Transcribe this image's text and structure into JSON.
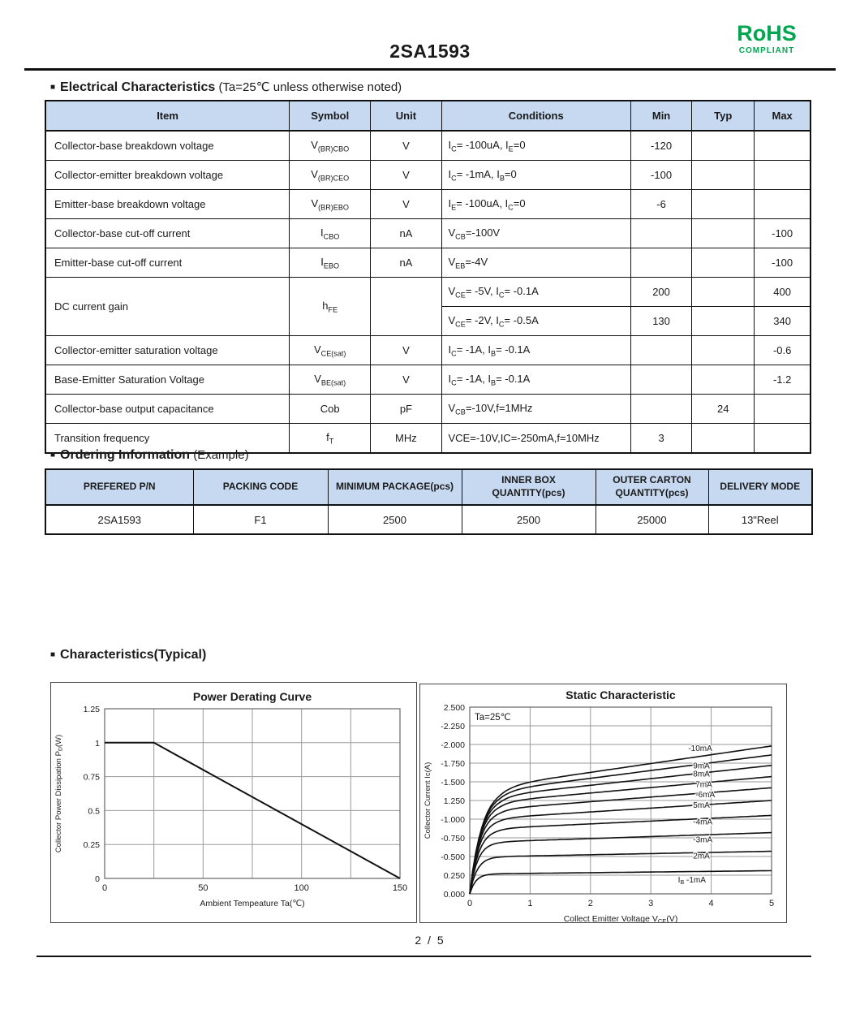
{
  "header": {
    "part_number": "2SA1593",
    "rohs_logo": "RoHS",
    "rohs_sub": "COMPLIANT"
  },
  "sections": {
    "electrical": {
      "title": "Electrical Characteristics",
      "subtitle": "(Ta=25℃ unless otherwise noted)"
    },
    "ordering": {
      "title": "Ordering Information",
      "subtitle": "(Example)"
    },
    "typical": {
      "title": "Characteristics(Typical)"
    }
  },
  "electrical_table": {
    "headers": [
      "Item",
      "Symbol",
      "Unit",
      "Conditions",
      "Min",
      "Typ",
      "Max"
    ],
    "rows": [
      {
        "item": "Collector-base breakdown voltage",
        "symbol": "V~(BR)CBO~",
        "unit": "V",
        "cond": "I~C~= -100uA, I~E~=0",
        "min": "-120",
        "typ": "",
        "max": ""
      },
      {
        "item": "Collector-emitter breakdown voltage",
        "symbol": "V~(BR)CEO~",
        "unit": "V",
        "cond": "I~C~= -1mA, I~B~=0",
        "min": "-100",
        "typ": "",
        "max": ""
      },
      {
        "item": "Emitter-base breakdown voltage",
        "symbol": "V~(BR)EBO~",
        "unit": "V",
        "cond": "I~E~= -100uA, I~C~=0",
        "min": "-6",
        "typ": "",
        "max": ""
      },
      {
        "item": "Collector-base cut-off current",
        "symbol": "I~CBO~",
        "unit": "nA",
        "cond": "V~CB~=-100V",
        "min": "",
        "typ": "",
        "max": "-100"
      },
      {
        "item": "Emitter-base cut-off current",
        "symbol": "I~EBO~",
        "unit": "nA",
        "cond": "V~EB~=-4V",
        "min": "",
        "typ": "",
        "max": "-100"
      },
      {
        "item": "DC current gain",
        "symbol": "h~FE~",
        "unit": "",
        "sub_rows": [
          {
            "cond": "V~CE~= -5V, I~C~= -0.1A",
            "min": "200",
            "typ": "",
            "max": "400"
          },
          {
            "cond": "V~CE~= -2V, I~C~= -0.5A",
            "min": "130",
            "typ": "",
            "max": "340"
          }
        ]
      },
      {
        "item": "Collector-emitter saturation voltage",
        "symbol": "V~CE(sat)~",
        "unit": "V",
        "cond": "I~C~= -1A, I~B~= -0.1A",
        "min": "",
        "typ": "",
        "max": "-0.6"
      },
      {
        "item": "Base-Emitter Saturation Voltage",
        "symbol": "V~BE(sat)~",
        "unit": "V",
        "cond": "I~C~= -1A, I~B~= -0.1A",
        "min": "",
        "typ": "",
        "max": "-1.2"
      },
      {
        "item": "Collector-base output capacitance",
        "symbol": "Cob",
        "unit": "pF",
        "cond": "V~CB~=-10V,f=1MHz",
        "min": "",
        "typ": "24",
        "max": ""
      },
      {
        "item": "Transition frequency",
        "symbol": "f~T~",
        "unit": "MHz",
        "cond": "VCE=-10V,IC=-250mA,f=10MHz",
        "min": "3",
        "typ": "",
        "max": ""
      }
    ]
  },
  "ordering_table": {
    "headers": [
      "PREFERED P/N",
      "PACKING CODE",
      "MINIMUM PACKAGE(pcs)",
      "INNER BOX QUANTITY(pcs)",
      "OUTER CARTON QUANTITY(pcs)",
      "DELIVERY MODE"
    ],
    "values": [
      "2SA1593",
      "F1",
      "2500",
      "2500",
      "25000",
      "13\"Reel"
    ]
  },
  "footer": {
    "page": "2 / 5"
  },
  "colors": {
    "table_header_bg": "#c6d9f1",
    "rohs_green": "#00a650",
    "grid": "#9a9a9a",
    "curve": "#111111"
  },
  "chart_data": [
    {
      "type": "line",
      "title": "Power Derating Curve",
      "xlabel": "Ambient Tempeature Ta(℃)",
      "ylabel": "Collector Power Dissipation  P~D~(W)",
      "xlim": [
        0,
        150
      ],
      "ylim": [
        0,
        1.25
      ],
      "x_grid_step": 25,
      "y_grid_step": 0.25,
      "xtick_values": [
        0,
        50,
        100,
        150
      ],
      "xtick_labels": [
        "0",
        "50",
        "100",
        "150"
      ],
      "ytick_values": [
        1.25,
        1,
        0.75,
        0.5,
        0.25,
        0
      ],
      "ytick_labels": [
        "1.25",
        "1",
        "0.75",
        "0.5",
        "0.25",
        "0"
      ],
      "line_x": [
        0,
        25,
        150
      ],
      "line_y": [
        1,
        1,
        0
      ],
      "grid": true,
      "legend": "none"
    },
    {
      "type": "line",
      "title": "Static Characteristic",
      "annotation": "Ta=25℃",
      "xlabel": "Collect Emitter Voltage  V~CE~(V)",
      "ylabel": "Collector Current  Ic(A)",
      "xlim": [
        0,
        5
      ],
      "ylim": [
        0,
        2.5
      ],
      "x_grid_step": 1,
      "y_grid_step": 0.25,
      "xtick_values": [
        0,
        1,
        2,
        3,
        4,
        5
      ],
      "xtick_labels": [
        "0",
        "1",
        "2",
        "3",
        "4",
        "5"
      ],
      "ytick_values": [
        2.5,
        2.25,
        2.0,
        1.75,
        1.5,
        1.25,
        1.0,
        0.75,
        0.5,
        0.25,
        0
      ],
      "ytick_labels": [
        "2.500",
        "-2.250",
        "-2.000",
        "-1.750",
        "-1.500",
        "1.250",
        "-1.000",
        "-0.750",
        "-0.500",
        "0.250",
        "0.000"
      ],
      "series": [
        {
          "label": "-10mA",
          "knee": 1.45,
          "end": 1.98,
          "tau": 0.21,
          "lx": 3.62,
          "ly": 1.95
        },
        {
          "label": "9mA",
          "knee": 1.39,
          "end": 1.86,
          "tau": 0.2,
          "lx": 3.7,
          "ly": 1.72
        },
        {
          "label": "8mA",
          "knee": 1.32,
          "end": 1.72,
          "tau": 0.19,
          "lx": 3.7,
          "ly": 1.61
        },
        {
          "label": "7mA",
          "knee": 1.24,
          "end": 1.57,
          "tau": 0.18,
          "lx": 3.74,
          "ly": 1.47
        },
        {
          "label": "-6mA",
          "knee": 1.14,
          "end": 1.42,
          "tau": 0.17,
          "lx": 3.74,
          "ly": 1.33
        },
        {
          "label": "5mA",
          "knee": 1.02,
          "end": 1.25,
          "tau": 0.16,
          "lx": 3.7,
          "ly": 1.19
        },
        {
          "label": "-4mA",
          "knee": 0.88,
          "end": 1.05,
          "tau": 0.15,
          "lx": 3.7,
          "ly": 0.97
        },
        {
          "label": "-3mA",
          "knee": 0.7,
          "end": 0.82,
          "tau": 0.13,
          "lx": 3.7,
          "ly": 0.73
        },
        {
          "label": "2mA",
          "knee": 0.5,
          "end": 0.57,
          "tau": 0.12,
          "lx": 3.7,
          "ly": 0.51
        },
        {
          "label": "I~B~  -1mA",
          "knee": 0.27,
          "end": 0.31,
          "tau": 0.1,
          "lx": 3.45,
          "ly": 0.19
        }
      ],
      "grid": true,
      "legend": "inline-labels"
    }
  ]
}
